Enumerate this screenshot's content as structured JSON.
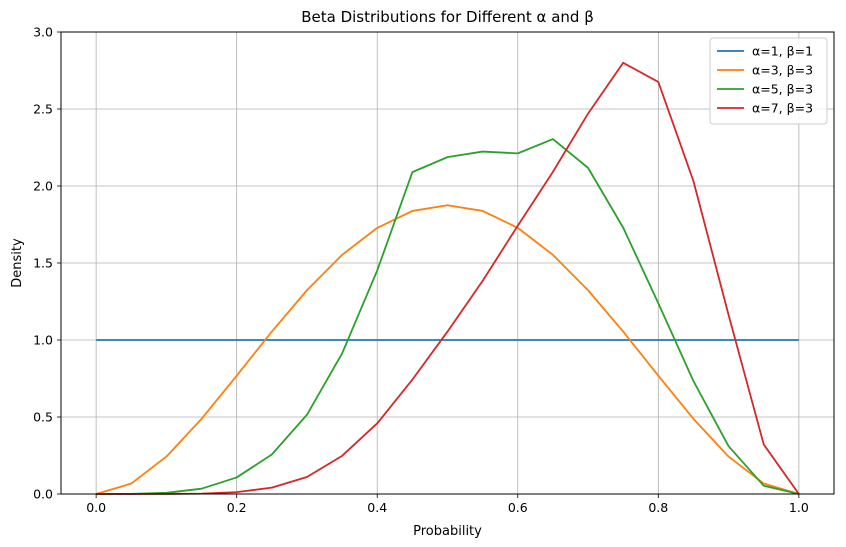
{
  "chart_data": {
    "type": "line",
    "title": "Beta Distributions for Different α and β",
    "xlabel": "Probability",
    "ylabel": "Density",
    "xlim": [
      -0.05,
      1.05
    ],
    "ylim": [
      0,
      3.0
    ],
    "grid": true,
    "legend_position": "top-right",
    "x_ticks": [
      0.0,
      0.2,
      0.4,
      0.6,
      0.8,
      1.0
    ],
    "x_tick_labels": [
      "0.0",
      "0.2",
      "0.4",
      "0.6",
      "0.8",
      "1.0"
    ],
    "y_ticks": [
      0.0,
      0.5,
      1.0,
      1.5,
      2.0,
      2.5,
      3.0
    ],
    "y_tick_labels": [
      "0.0",
      "0.5",
      "1.0",
      "1.5",
      "2.0",
      "2.5",
      "3.0"
    ],
    "series": [
      {
        "name": "α=1, β=1",
        "color": "#1f77b4",
        "x": [
          0.0,
          0.05,
          0.1,
          0.15,
          0.2,
          0.25,
          0.3,
          0.35,
          0.4,
          0.45,
          0.5,
          0.55,
          0.6,
          0.65,
          0.7,
          0.75,
          0.8,
          0.85,
          0.9,
          0.95,
          1.0
        ],
        "y": [
          1.0,
          1.0,
          1.0,
          1.0,
          1.0,
          1.0,
          1.0,
          1.0,
          1.0,
          1.0,
          1.0,
          1.0,
          1.0,
          1.0,
          1.0,
          1.0,
          1.0,
          1.0,
          1.0,
          1.0,
          1.0
        ]
      },
      {
        "name": "α=3, β=3",
        "color": "#ff7f0e",
        "x": [
          0.0,
          0.05,
          0.1,
          0.15,
          0.2,
          0.25,
          0.3,
          0.35,
          0.4,
          0.45,
          0.5,
          0.55,
          0.6,
          0.65,
          0.7,
          0.75,
          0.8,
          0.85,
          0.9,
          0.95,
          1.0
        ],
        "y": [
          0.0,
          0.068,
          0.243,
          0.488,
          0.768,
          1.055,
          1.323,
          1.553,
          1.728,
          1.838,
          1.875,
          1.838,
          1.728,
          1.553,
          1.323,
          1.055,
          0.768,
          0.488,
          0.243,
          0.068,
          0.0
        ]
      },
      {
        "name": "α=5, β=3",
        "color": "#2ca02c",
        "x": [
          0.0,
          0.05,
          0.1,
          0.15,
          0.2,
          0.25,
          0.3,
          0.35,
          0.4,
          0.45,
          0.5,
          0.55,
          0.6,
          0.65,
          0.7,
          0.75,
          0.8,
          0.85,
          0.9,
          0.95,
          1.0
        ],
        "y": [
          0.0,
          0.0006,
          0.0076,
          0.0346,
          0.1075,
          0.2563,
          0.5145,
          0.9128,
          1.4515,
          2.09,
          2.1875,
          2.2236,
          2.2118,
          2.305,
          2.1177,
          1.7297,
          1.2386,
          0.7331,
          0.3103,
          0.0535,
          0.0
        ]
      },
      {
        "name": "α=7, β=3",
        "color": "#d62728",
        "x": [
          0.0,
          0.05,
          0.1,
          0.15,
          0.2,
          0.25,
          0.3,
          0.35,
          0.4,
          0.45,
          0.5,
          0.55,
          0.6,
          0.65,
          0.7,
          0.75,
          0.8,
          0.85,
          0.9,
          0.95,
          1.0
        ],
        "y": [
          0.0,
          0.0,
          0.0003,
          0.0024,
          0.0123,
          0.0412,
          0.1106,
          0.2478,
          0.4589,
          0.7425,
          1.0547,
          1.3839,
          1.742,
          2.0918,
          2.4702,
          2.8,
          2.6759,
          2.0318,
          1.1624,
          0.3219,
          0.0
        ]
      }
    ]
  }
}
